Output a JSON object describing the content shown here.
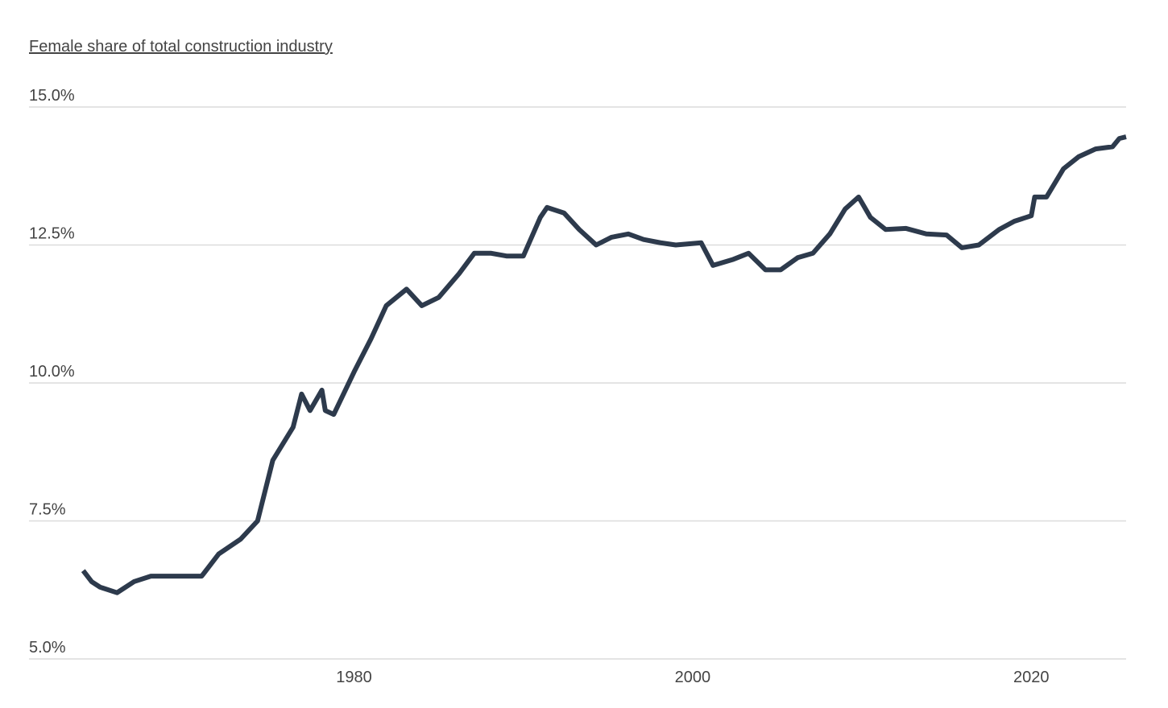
{
  "chart_data": {
    "type": "line",
    "title": "Female share of total construction industry",
    "x": [
      1964,
      1964.5,
      1965,
      1966,
      1967,
      1968,
      1969,
      1970,
      1971,
      1972,
      1973.3,
      1974.3,
      1975.2,
      1976.4,
      1976.9,
      1977.4,
      1978.1,
      1978.3,
      1978.8,
      1980,
      1981,
      1981.9,
      1983.1,
      1984,
      1985,
      1986.2,
      1987.1,
      1988.1,
      1989,
      1990,
      1991,
      1991.4,
      1992.4,
      1993.3,
      1994.3,
      1995.2,
      1996.2,
      1997.1,
      1998.1,
      1999,
      2000.5,
      2001.2,
      2002.4,
      2003.3,
      2004.3,
      2005.2,
      2006.2,
      2007.1,
      2008.1,
      2009,
      2009.8,
      2010.5,
      2011.4,
      2012.6,
      2013.8,
      2015,
      2015.9,
      2016.9,
      2018.1,
      2019,
      2020,
      2020.2,
      2020.9,
      2021.9,
      2022.8,
      2023.8,
      2024.8,
      2025.2,
      2025.6
    ],
    "series": [
      {
        "name": "Female share",
        "color": "#2d3a4c",
        "values": [
          6.6,
          6.4,
          6.3,
          6.2,
          6.4,
          6.5,
          6.5,
          6.5,
          6.5,
          6.9,
          7.17,
          7.5,
          8.6,
          9.2,
          9.8,
          9.5,
          9.87,
          9.5,
          9.43,
          10.2,
          10.8,
          11.4,
          11.7,
          11.4,
          11.55,
          11.98,
          12.35,
          12.35,
          12.3,
          12.3,
          13.0,
          13.18,
          13.08,
          12.78,
          12.5,
          12.64,
          12.7,
          12.6,
          12.54,
          12.5,
          12.54,
          12.13,
          12.24,
          12.35,
          12.05,
          12.05,
          12.27,
          12.35,
          12.7,
          13.15,
          13.37,
          13.0,
          12.78,
          12.8,
          12.7,
          12.68,
          12.45,
          12.5,
          12.78,
          12.93,
          13.03,
          13.37,
          13.37,
          13.88,
          14.1,
          14.24,
          14.28,
          14.43,
          14.46
        ]
      }
    ],
    "xlim": [
      1960.8,
      2025.6
    ],
    "xticks": [
      1980,
      2000,
      2020
    ],
    "ylim": [
      5,
      15
    ],
    "yticks": [
      {
        "value": 5,
        "label": "5.0%"
      },
      {
        "value": 7.5,
        "label": "7.5%"
      },
      {
        "value": 10,
        "label": "10.0%"
      },
      {
        "value": 12.5,
        "label": "12.5%"
      },
      {
        "value": 15,
        "label": "15.0%"
      }
    ],
    "grid": true
  }
}
